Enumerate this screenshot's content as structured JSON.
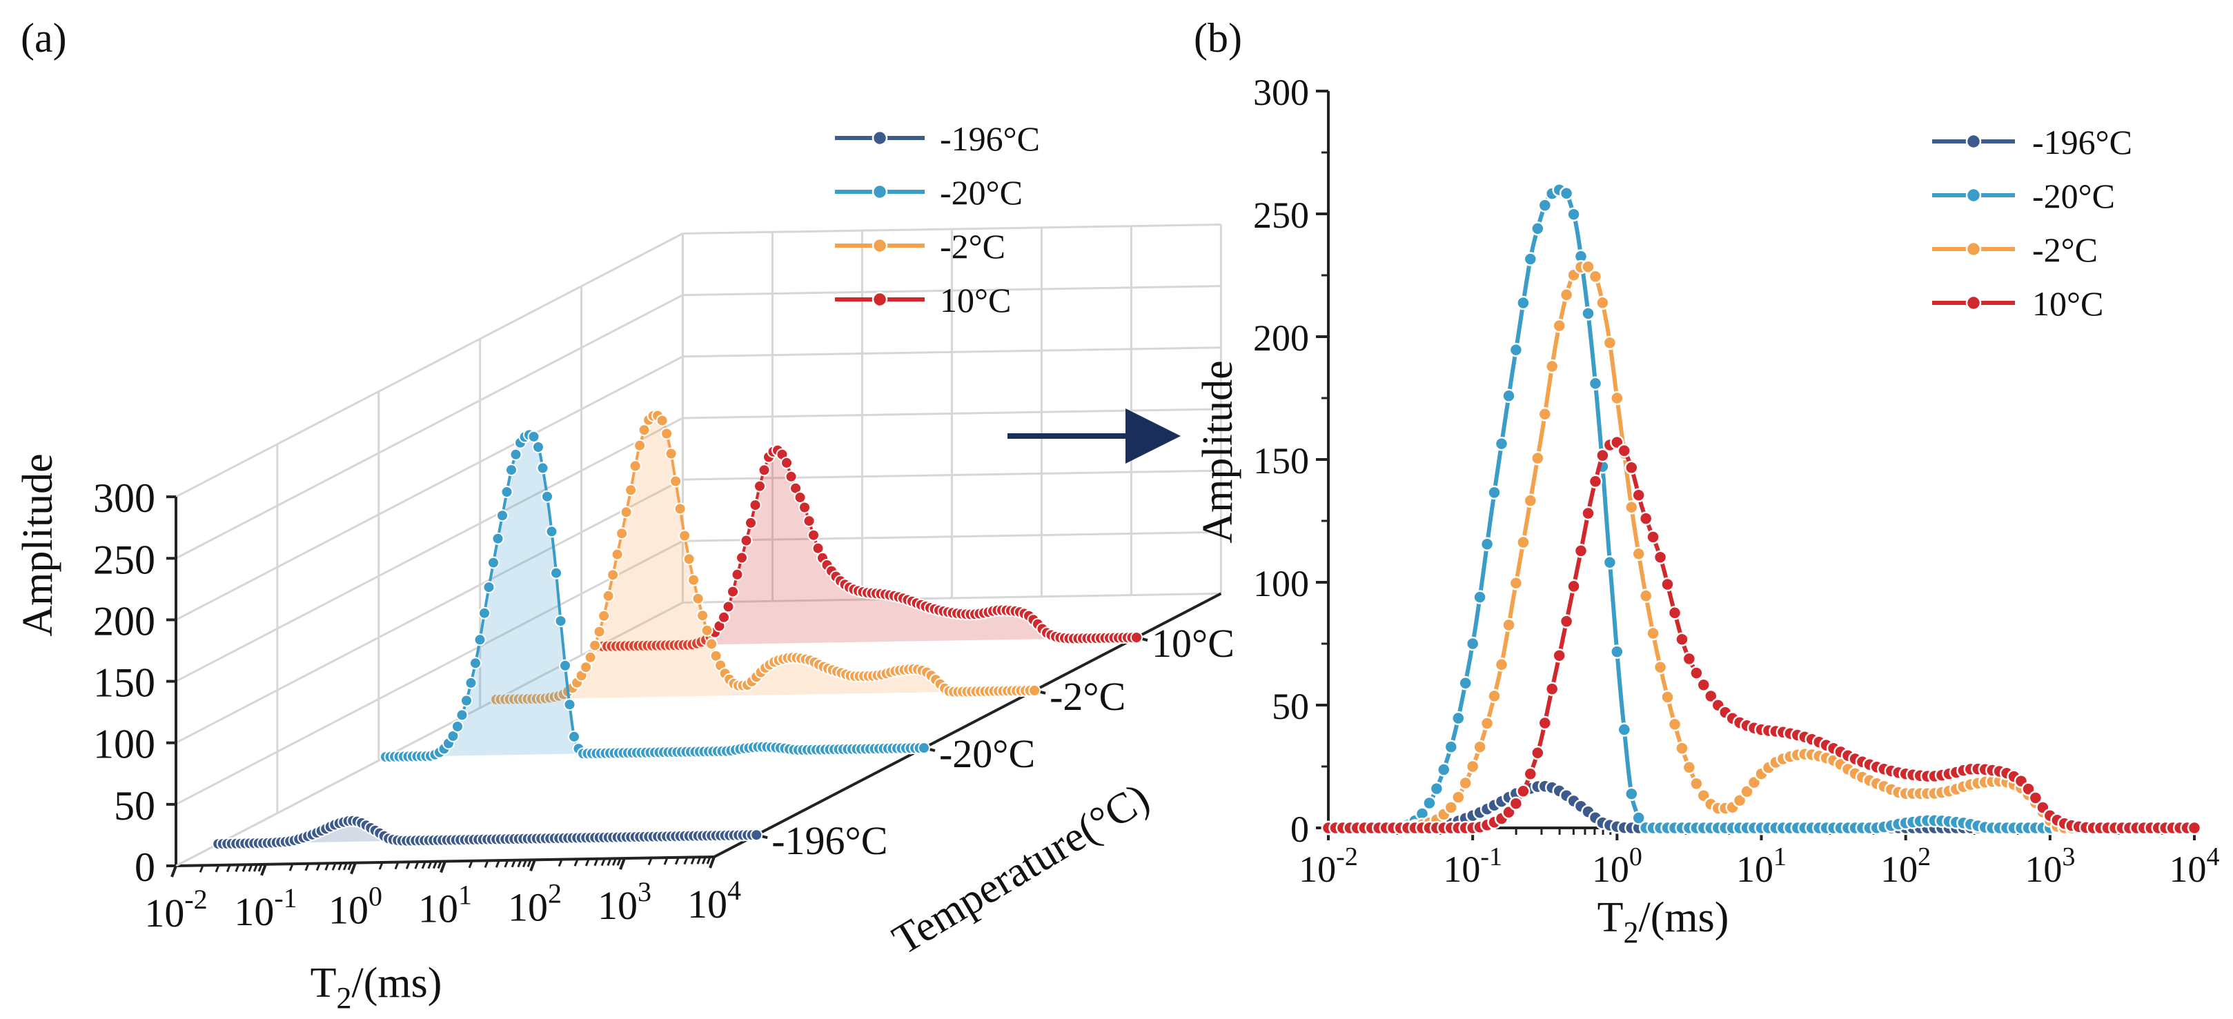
{
  "panel_labels": [
    "(a)",
    "(b)"
  ],
  "legend_entries": [
    "-196°C",
    "-20°C",
    "-2°C",
    "10°C"
  ],
  "colors": {
    "-196°C": "#3d5a8c",
    "-20°C": "#3a9cc8",
    "-2°C": "#f4a14e",
    "10°C": "#d0282c",
    "arrow": "#1a2e5a"
  },
  "panel_a": {
    "ylabel": "Amplitude",
    "xlabel_main": "T",
    "xlabel_sub": "2",
    "xlabel_unit": "/(ms)",
    "zlabel": "Temperature(°C)",
    "temperature_ticks": [
      "-196°C",
      "-20°C",
      "-2°C",
      "10°C"
    ]
  },
  "chart_data": [
    {
      "type": "line",
      "panel": "a",
      "projection": "3d",
      "xlabel": "T2/(ms)",
      "ylabel": "Amplitude",
      "zlabel": "Temperature(°C)",
      "xscale": "log",
      "xlim": [
        0.01,
        10000
      ],
      "ylim": [
        0,
        300
      ],
      "x_ticks": [
        "10-2",
        "10-1",
        "100",
        "101",
        "102",
        "103",
        "104"
      ],
      "y_ticks": [
        0,
        50,
        100,
        150,
        200,
        250,
        300
      ],
      "z_categories": [
        "-196°C",
        "-20°C",
        "-2°C",
        "10°C"
      ],
      "grid": true,
      "legend_position": "top-right",
      "series_same_as_panel_b": true
    },
    {
      "type": "line",
      "panel": "b",
      "xlabel": "T2/(ms)",
      "ylabel": "Amplitude",
      "xscale": "log",
      "xlim": [
        0.01,
        10000
      ],
      "ylim": [
        0,
        300
      ],
      "x_ticks": [
        "10-2",
        "10-1",
        "100",
        "101",
        "102",
        "103",
        "104"
      ],
      "y_ticks": [
        0,
        50,
        100,
        150,
        200,
        250,
        300
      ],
      "grid": false,
      "legend_position": "top-right",
      "series": [
        {
          "name": "-196°C",
          "x": [
            0.01,
            0.03,
            0.06,
            0.1,
            0.15,
            0.2,
            0.25,
            0.3,
            0.35,
            0.4,
            0.5,
            0.65,
            0.8,
            1.0,
            1.2,
            1.5,
            2,
            10,
            100,
            1000,
            10000
          ],
          "y": [
            0,
            0,
            1,
            5,
            10,
            14,
            16,
            17,
            16.5,
            15,
            11,
            6,
            2,
            0.5,
            0,
            0,
            0,
            0,
            0,
            0,
            0
          ]
        },
        {
          "name": "-20°C",
          "x": [
            0.01,
            0.03,
            0.04,
            0.05,
            0.07,
            0.1,
            0.14,
            0.2,
            0.27,
            0.35,
            0.42,
            0.5,
            0.6,
            0.75,
            0.9,
            1.1,
            1.3,
            1.6,
            2,
            10,
            60,
            100,
            150,
            250,
            400,
            10000
          ],
          "y": [
            0,
            0,
            3,
            10,
            32,
            75,
            135,
            195,
            240,
            258,
            260,
            250,
            220,
            165,
            105,
            45,
            10,
            0,
            0,
            0,
            0,
            2,
            3,
            2,
            0,
            0
          ]
        },
        {
          "name": "-2°C",
          "x": [
            0.01,
            0.03,
            0.05,
            0.07,
            0.1,
            0.15,
            0.2,
            0.3,
            0.4,
            0.5,
            0.6,
            0.7,
            0.85,
            1.0,
            1.3,
            1.7,
            2.2,
            3,
            4,
            5,
            6,
            8,
            10,
            14,
            20,
            30,
            45,
            70,
            100,
            150,
            200,
            300,
            450,
            600,
            800,
            1000,
            1200,
            10000
          ],
          "y": [
            0,
            0,
            2,
            8,
            25,
            60,
            100,
            160,
            205,
            225,
            229,
            225,
            205,
            175,
            125,
            85,
            55,
            28,
            13,
            8,
            8,
            15,
            22,
            28,
            30,
            28,
            22,
            17,
            14,
            14,
            15,
            18,
            19,
            17,
            10,
            3,
            0,
            0
          ]
        },
        {
          "name": "10°C",
          "x": [
            0.01,
            0.1,
            0.15,
            0.2,
            0.28,
            0.35,
            0.45,
            0.55,
            0.7,
            0.85,
            1.0,
            1.2,
            1.5,
            2,
            2.5,
            3,
            4,
            5,
            7,
            10,
            14,
            20,
            30,
            45,
            70,
            100,
            150,
            200,
            300,
            450,
            600,
            800,
            1000,
            1400,
            2000,
            10000
          ],
          "y": [
            0,
            0,
            3,
            10,
            30,
            55,
            85,
            110,
            140,
            155,
            157,
            150,
            130,
            110,
            88,
            72,
            58,
            50,
            43,
            40,
            39,
            37,
            33,
            28,
            24,
            22,
            21,
            22,
            24,
            23,
            20,
            12,
            5,
            1,
            0,
            0
          ]
        }
      ]
    }
  ]
}
